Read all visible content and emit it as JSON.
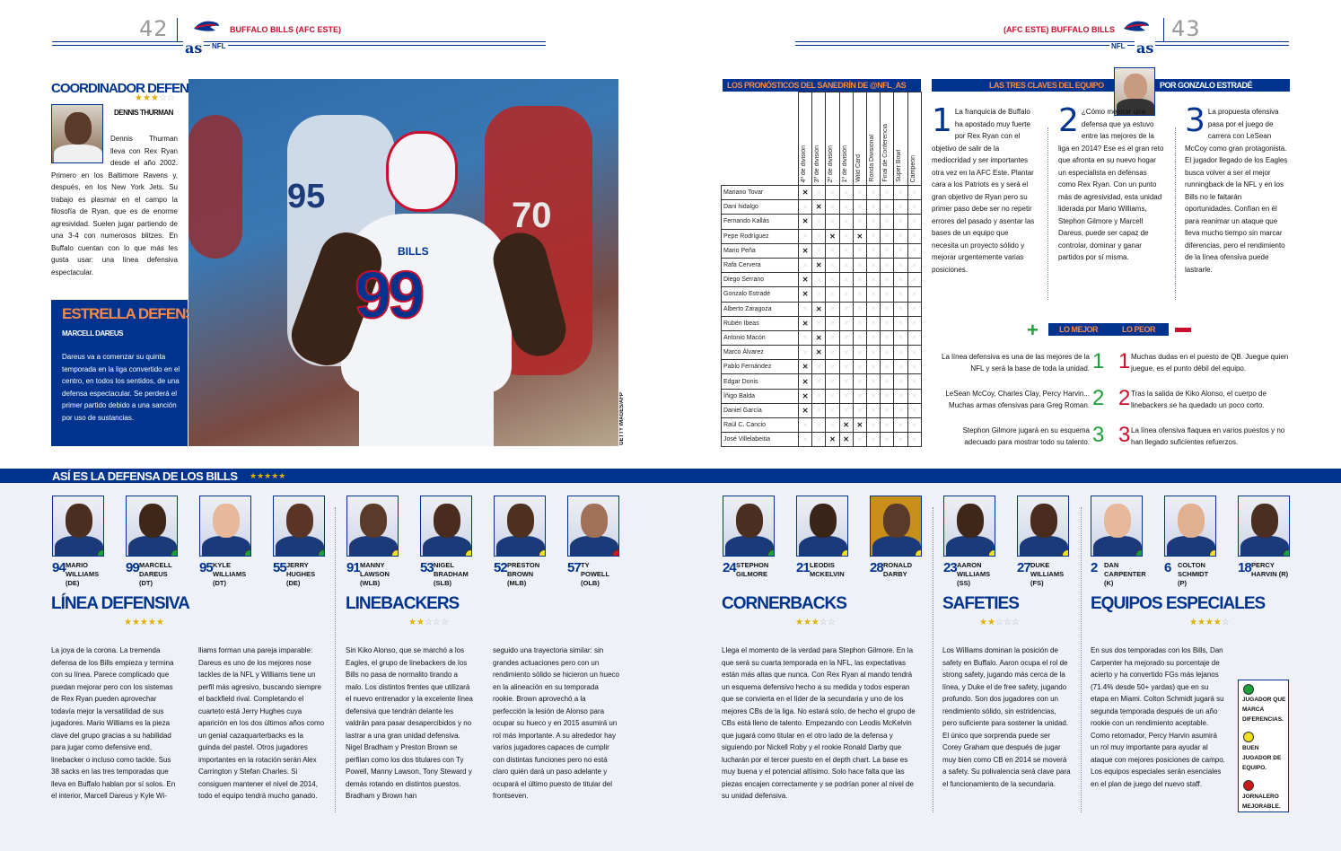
{
  "left": {
    "page_number": "42",
    "running_head": "BUFFALO BILLS (AFC ESTE)",
    "brand": "as",
    "section": "NFL"
  },
  "right": {
    "page_number": "43",
    "running_head": "(AFC ESTE) BUFFALO BILLS",
    "brand": "as",
    "section": "NFL"
  },
  "coordinator": {
    "title": "COORDINADOR DEFENSIVO",
    "stars": "★★★☆☆",
    "name": "DENNIS THURMAN",
    "text": "Dennis Thurman lleva con Rex Ryan desde el año 2002. Primero en los Baltimore Ravens y, después, en los New York Jets. Su trabajo es plasmar en el campo la filosofía de Ryan, que es de enorme agresividad. Suelen jugar partiendo de una 3-4 con numerosos blitzes. En Buffalo cuentan con lo que más les gusta usar: una línea defensiva espectacular."
  },
  "star_box": {
    "title": "ESTRELLA DEFENSIVA",
    "name": "MARCELL DAREUS",
    "text": "Dareus va a comenzar su quinta temporada en la liga convertido en el centro, en todos los sentidos, de una defensa espectacular. Se perderá el primer partido debido a una sanción por uso de sustancias."
  },
  "photo": {
    "credit": "GETTY IMAGES/AFP",
    "jersey": "99",
    "jersey_bg": "95",
    "jersey_bg2": "70",
    "tag": "BILLS"
  },
  "predictions": {
    "title": "LOS PRONÓSTICOS DEL SANEDRÍN DE @NFL_AS",
    "columns": [
      "4º de división",
      "3º de división",
      "2º de división",
      "1º de división",
      "Wild Card",
      "Ronda Divisional",
      "Final de Conferencia",
      "Super Bowl",
      "Campeón"
    ],
    "rows": [
      {
        "name": "Mariano Tovar",
        "pick": 0
      },
      {
        "name": "Dani hidalgo",
        "pick": 1
      },
      {
        "name": "Fernando Kallás",
        "pick": 0
      },
      {
        "name": "Pepe Rodríguez",
        "pick": 2,
        "pick2": 4
      },
      {
        "name": "Mario Peña",
        "pick": 0
      },
      {
        "name": "Rafa Cervera",
        "pick": 1
      },
      {
        "name": "Diego Serrano",
        "pick": 0
      },
      {
        "name": "Gonzalo Estradé",
        "pick": 0
      },
      {
        "name": "Alberto Zaragoza",
        "pick": 1
      },
      {
        "name": "Rubén Ibeas",
        "pick": 0
      },
      {
        "name": "Antonio Macón",
        "pick": 1
      },
      {
        "name": "Marco Álvarez",
        "pick": 1
      },
      {
        "name": "Pablo Fernández",
        "pick": 0
      },
      {
        "name": "Edgar Donis",
        "pick": 0
      },
      {
        "name": "Íñigo Balda",
        "pick": 0
      },
      {
        "name": "Daniel García",
        "pick": 0
      },
      {
        "name": "Raúl C. Cancio",
        "pick": 3,
        "pick2": 4
      },
      {
        "name": "José Villelabeitia",
        "pick": 2,
        "pick2": 3
      }
    ]
  },
  "keys": {
    "title": "LAS TRES CLAVES DEL EQUIPO",
    "author": "POR GONZALO ESTRADÉ",
    "items": [
      {
        "n": "1",
        "text": "La franquicia de Buffalo ha apostado muy fuerte por Rex Ryan con el objetivo de salir de la mediocridad y ser importantes otra vez en la AFC Este. Plantar cara a los Patriots es y será el gran objetivo de Ryan pero su primer paso debe ser no repetir errores del pasado y asentar las bases de un equipo que necesita un proyecto sólido y mejorar urgentemente varias posiciones."
      },
      {
        "n": "2",
        "text": "¿Cómo mejorar una defensa que ya estuvo entre las mejores de la liga en 2014? Ese es el gran reto que afronta en su nuevo hogar un especialista en defensas como Rex Ryan. Con un punto más de agresividad, esta unidad liderada por Mario Williams, Stephon Gilmore y Marcell Dareus, puede ser capaz de controlar, dominar y ganar partidos por sí misma."
      },
      {
        "n": "3",
        "text": "La propuesta ofensiva pasa por el juego de carrera con LeSean McCoy como gran protagonista. El jugador llegado de los Eagles busca volver a ser el mejor runningback de la NFL y en los Bills no le faltarán oportunidades. Confían en él para reanimar un ataque que lleva mucho tiempo sin marcar diferencias, pero el rendimiento de la línea ofensiva puede lastrarle."
      }
    ]
  },
  "best_worst": {
    "best_label": "LO MEJOR",
    "worst_label": "LO PEOR",
    "best": [
      "La línea defensiva es una de las mejores de la NFL y será la base de toda la unidad.",
      "LeSean McCoy, Charles Clay, Percy Harvin... Muchas armas ofensivas para Greg Roman.",
      "Stephon Gilmore jugará en su esquema adecuado para mostrar todo su talento."
    ],
    "worst": [
      "Muchas dudas en el puesto de QB. Juegue quien juegue, es el punto débil del equipo.",
      "Tras la salida de Kiko Alonso, el cuerpo de linebackers se ha quedado un poco corto.",
      "La línea ofensiva flaquea en varios puestos y no han llegado suficientes refuerzos."
    ]
  },
  "defense_banner": {
    "title": "ASÍ ES LA DEFENSA DE LOS BILLS",
    "stars": "★★★★★"
  },
  "players_left": [
    {
      "num": "94",
      "name": "MARIO WILLIAMS (DE)",
      "status": "green"
    },
    {
      "num": "99",
      "name": "MARCELL DAREUS (DT)",
      "status": "green"
    },
    {
      "num": "95",
      "name": "KYLE WILLIAMS (DT)",
      "status": "green"
    },
    {
      "num": "55",
      "name": "JERRY HUGHES (DE)",
      "status": "green"
    },
    {
      "num": "91",
      "name": "MANNY LAWSON (WLB)",
      "status": "yellow"
    },
    {
      "num": "53",
      "name": "NIGEL BRADHAM (SLB)",
      "status": "yellow"
    },
    {
      "num": "52",
      "name": "PRESTON BROWN (MLB)",
      "status": "yellow"
    },
    {
      "num": "57",
      "name": "TY POWELL (OLB)",
      "status": "red"
    }
  ],
  "players_right": [
    {
      "num": "24",
      "name": "STEPHON GILMORE",
      "status": "green"
    },
    {
      "num": "21",
      "name": "LEODIS MCKELVIN",
      "status": "yellow"
    },
    {
      "num": "28",
      "name": "RONALD DARBY",
      "status": "yellow"
    },
    {
      "num": "23",
      "name": "AARON WILLIAMS (SS)",
      "status": "yellow"
    },
    {
      "num": "27",
      "name": "DUKE WILLIAMS (FS)",
      "status": "yellow"
    },
    {
      "num": "2",
      "name": "DAN CARPENTER (K)",
      "status": "green"
    },
    {
      "num": "6",
      "name": "COLTON SCHMIDT (P)",
      "status": "yellow"
    },
    {
      "num": "18",
      "name": "PERCY HARVIN (R)",
      "status": "green"
    }
  ],
  "sections": {
    "dl": {
      "title": "LÍNEA DEFENSIVA",
      "stars": "★★★★★",
      "col1": "La joya de la corona. La tremenda defensa de los Bills empieza y termina con su línea. Parece complicado que puedan mejorar pero con los sistemas de Rex Ryan pueden aprovechar todavía mejor la versatilidad de sus jugadores. Mario Williams es la pieza clave del grupo gracias a su habilidad para jugar como defensive end, linebacker o incluso como tackle. Sus 38 sacks en las tres temporadas que lleva en Buffalo hablan por sí solos. En el interior, Marcell Dareus y Kyle Wi-",
      "col2": "lliams forman una pareja imparable: Dareus es uno de los mejores nose tackles de la NFL y Williams tiene un perfil más agresivo, buscando siempre el backfield rival. Completando el cuarteto está Jerry Hughes cuya aparición en los dos últimos años como un genial cazaquarterbacks es la guinda del pastel. Otros jugadores importantes en la rotación serán Alex Carrington y Stefan Charles. Si consiguen mantener el nivel de 2014, todo el equipo tendrá mucho ganado."
    },
    "lb": {
      "title": "LINEBACKERS",
      "stars": "★★☆☆☆",
      "col1": "Sin Kiko Alonso, que se marchó a los Eagles, el grupo de linebackers de los Bills no pasa de normalito tirando a malo. Los distintos frentes que utilizará el nuevo entrenador y la excelente línea defensiva que tendrán delante les valdrán para pasar desapercibidos y no lastrar a una gran unidad defensiva. Nigel Bradham y Preston Brown se perfilan como los dos titulares con Ty Powell, Manny Lawson, Tony Steward y demás rotando en distintos puestos. Bradham y Brown han",
      "col2": "seguido una trayectoria similar: sin grandes actuaciones pero con un rendimiento sólido se hicieron un hueco en la alineación en su temporada rookie. Brown aprovechó a la perfección la lesión de Alonso para ocupar su hueco y en 2015 asumirá un rol más importante. A su alrededor hay varios jugadores capaces de cumplir con distintas funciones pero no está claro quién dará un paso adelante y ocupará el último puesto de titular del frontseven."
    },
    "cb": {
      "title": "CORNERBACKS",
      "stars": "★★★☆☆",
      "text": "Llega el momento de la verdad para Stephon Gilmore. En la que será su cuarta temporada en la NFL, las expectativas están más altas que nunca. Con Rex Ryan al mando tendrá un esquema defensivo hecho a su medida y todos esperan que se convierta en el líder de la secundaria y uno de los mejores CBs de la liga. No estará solo, de hecho el grupo de CBs está lleno de talento. Empezando con Leodis McKelvin que jugará como titular en el otro lado de la defensa y siguiendo por Nickell Roby y el rookie Ronald Darby que lucharán por el tercer puesto en el depth chart. La base es muy buena y el potencial altísimo. Solo hace falta que las piezas encajen correctamente y se podrían poner al nivel de su unidad defensiva."
    },
    "sf": {
      "title": "SAFETIES",
      "stars": "★★☆☆☆",
      "text": "Los Williams dominan la posición de safety en Buffalo. Aaron ocupa el rol de strong safety, jugando más cerca de la línea, y Duke el de free safety, jugando profundo. Son dos jugadores con un rendimiento sólido, sin estridencias, pero suficiente para sostener la unidad. El único que sorprenda puede ser Corey Graham que después de jugar muy bien como CB en 2014 se moverá a safety. Su polivalencia será clave para el funcionamiento de la secundaria."
    },
    "st": {
      "title": "EQUIPOS ESPECIALES",
      "stars": "★★★★☆",
      "text": "En sus dos temporadas con los Bills, Dan Carpenter ha mejorado su porcentaje de acierto y ha convertido FGs más lejanos (71.4% desde 50+ yardas) que en su etapa en Miami. Colton Schmidt jugará su segunda temporada después de un año rookie con un rendimiento aceptable. Como retornador, Percy Harvin asumirá un rol muy importante para ayudar al ataque con mejores posiciones de campo. Los equipos especiales serán esenciales en el plan de juego del nuevo staff."
    }
  },
  "legend": {
    "green": "JUGADOR QUE MARCA DIFERENCIAS.",
    "yellow": "BUEN JUGADOR DE EQUIPO.",
    "red": "JORNALERO MEJORABLE."
  },
  "colors": {
    "navy": "#00338d",
    "red": "#c8102e",
    "green": "#1e9e3a",
    "yellow": "#f0e020",
    "darkred": "#cc1a1a"
  }
}
